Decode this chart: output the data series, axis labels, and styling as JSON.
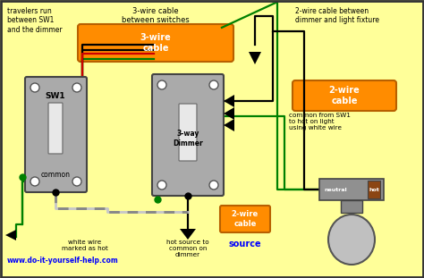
{
  "bg_color": "#FFFF99",
  "url": "www.do-it-yourself-help.com",
  "labels": {
    "travelers": "travelers run\nbetween SW1\nand the dimmer",
    "three_wire_top": "3-wire cable\nbetween switches",
    "two_wire_top": "2-wire cable between\ndimmer and light fixture",
    "three_wire_label": "3-wire\ncable",
    "two_wire_label1": "2-wire\ncable",
    "two_wire_label2": "2-wire\ncable",
    "source": "source",
    "sw1": "SW1",
    "common_sw1": "common",
    "three_way_dimmer": "3-way\nDimmer",
    "neutral": "neutral",
    "hot": "hot",
    "white_wire": "white wire\nmarked as hot",
    "hot_source": "hot source to\ncommon on\ndimmer",
    "common_note": "common from SW1\nto hot on light\nusing white wire"
  },
  "colors": {
    "green": "#008000",
    "red": "#CC0000",
    "black": "#000000",
    "orange": "#FF8C00",
    "gray": "#999999",
    "blue": "#0000CC",
    "white_wire": "#C8C8C8",
    "bg": "#FFFF99",
    "dark_gray": "#555555",
    "light_gray": "#BBBBBB",
    "brown": "#8B4513"
  }
}
